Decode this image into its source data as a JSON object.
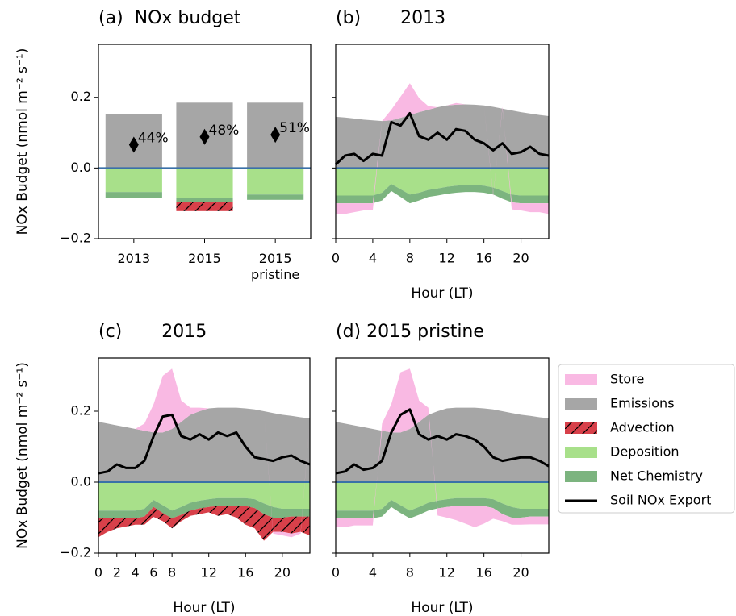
{
  "chart_data": [
    {
      "type": "bar",
      "title": "(a)  NOx budget",
      "ylabel": "NOx Budget (nmol m⁻² s⁻¹)",
      "categories": [
        "2013",
        "2015",
        "2015 pristine"
      ],
      "series": [
        {
          "kind": "stack",
          "color": "#f9b9e3",
          "values": [
            0,
            0,
            0
          ]
        },
        {
          "kind": "stack",
          "color": "#a6a6a6",
          "values": [
            0.152,
            0.185,
            0.185
          ]
        },
        {
          "kind": "stack",
          "color": "#d8404a",
          "hatch": "/",
          "values": [
            0,
            -0.025,
            0
          ]
        },
        {
          "kind": "stack",
          "color": "#a8e08a",
          "values": [
            -0.068,
            -0.085,
            -0.075
          ]
        },
        {
          "kind": "stack",
          "color": "#7cb47f",
          "values": [
            -0.017,
            -0.012,
            -0.015
          ]
        },
        {
          "kind": "marker",
          "color": "#000000",
          "values": [
            0.066,
            0.088,
            0.094
          ]
        }
      ],
      "annotations": [
        "44%",
        "48%",
        "51%"
      ],
      "hline": {
        "value": 0,
        "color": "#3a70a8"
      },
      "ylim": [
        -0.2,
        0.35
      ],
      "yticks": [
        {
          "value": -0.2,
          "label": "−0.2"
        },
        {
          "value": 0,
          "label": "0.0"
        },
        0.2
      ],
      "show_ytick_labels": true
    },
    {
      "type": "area",
      "title": "(b)       2013",
      "xlabel": "Hour (LT)",
      "x": [
        0,
        1,
        2,
        3,
        4,
        5,
        6,
        7,
        8,
        9,
        10,
        11,
        12,
        13,
        14,
        15,
        16,
        17,
        18,
        19,
        20,
        21,
        22,
        23
      ],
      "series": [
        {
          "kind": "stack",
          "color": "#f9b9e3",
          "values": [
            -0.03,
            -0.03,
            -0.025,
            -0.02,
            -0.02,
            0.0,
            0.03,
            0.06,
            0.09,
            0.04,
            0.01,
            0.0,
            0.0,
            0.005,
            0.0,
            0.0,
            0.0,
            -0.005,
            0.005,
            -0.02,
            -0.02,
            -0.025,
            -0.025,
            -0.03
          ]
        },
        {
          "kind": "stack",
          "color": "#a6a6a6",
          "values": [
            0.145,
            0.143,
            0.14,
            0.137,
            0.135,
            0.133,
            0.135,
            0.142,
            0.15,
            0.158,
            0.165,
            0.172,
            0.177,
            0.179,
            0.18,
            0.179,
            0.177,
            0.173,
            0.168,
            0.163,
            0.158,
            0.154,
            0.15,
            0.147
          ]
        },
        {
          "kind": "stack",
          "color": "#d8404a",
          "hatch": "/",
          "values": [
            0,
            0,
            0,
            0,
            0,
            0,
            0,
            0,
            0,
            0,
            0,
            0,
            0,
            0,
            0,
            0,
            0,
            0,
            0,
            0,
            0,
            0,
            0,
            0
          ]
        },
        {
          "kind": "stack",
          "color": "#a8e08a",
          "values": [
            -0.078,
            -0.078,
            -0.078,
            -0.078,
            -0.078,
            -0.07,
            -0.045,
            -0.06,
            -0.075,
            -0.07,
            -0.062,
            -0.058,
            -0.053,
            -0.05,
            -0.048,
            -0.048,
            -0.05,
            -0.055,
            -0.065,
            -0.075,
            -0.078,
            -0.078,
            -0.078,
            -0.078
          ]
        },
        {
          "kind": "stack",
          "color": "#7cb47f",
          "values": [
            -0.022,
            -0.022,
            -0.022,
            -0.022,
            -0.022,
            -0.022,
            -0.02,
            -0.022,
            -0.025,
            -0.022,
            -0.02,
            -0.02,
            -0.02,
            -0.02,
            -0.02,
            -0.02,
            -0.02,
            -0.02,
            -0.022,
            -0.022,
            -0.022,
            -0.022,
            -0.022,
            -0.022
          ]
        },
        {
          "kind": "line",
          "color": "#000000",
          "values": [
            0.01,
            0.035,
            0.04,
            0.02,
            0.04,
            0.035,
            0.13,
            0.12,
            0.155,
            0.09,
            0.08,
            0.1,
            0.08,
            0.11,
            0.105,
            0.08,
            0.07,
            0.05,
            0.07,
            0.04,
            0.045,
            0.06,
            0.04,
            0.035
          ]
        }
      ],
      "hline": {
        "value": 0,
        "color": "#3a70a8"
      },
      "xlim": [
        0,
        23
      ],
      "xticks": [
        0,
        4,
        8,
        12,
        16,
        20
      ],
      "ylim": [
        -0.2,
        0.35
      ],
      "yticks": [
        -0.2,
        0,
        0.2
      ],
      "show_ytick_labels": false
    },
    {
      "type": "area",
      "title": "(c)       2015",
      "xlabel": "Hour (LT)",
      "ylabel": "NOx Budget (nmol m⁻² s⁻¹)",
      "x": [
        0,
        1,
        2,
        3,
        4,
        5,
        6,
        7,
        8,
        9,
        10,
        11,
        12,
        13,
        14,
        15,
        16,
        17,
        18,
        19,
        20,
        21,
        22,
        23
      ],
      "series": [
        {
          "kind": "stack",
          "color": "#f9b9e3",
          "values": [
            0,
            0,
            0,
            0,
            0,
            0.02,
            0.08,
            0.16,
            0.17,
            0.06,
            0.02,
            0.01,
            0,
            0,
            0,
            0,
            0,
            0,
            0,
            -0.005,
            -0.01,
            -0.01,
            -0.005,
            0
          ]
        },
        {
          "kind": "stack",
          "color": "#a6a6a6",
          "values": [
            0.17,
            0.165,
            0.16,
            0.155,
            0.15,
            0.145,
            0.14,
            0.14,
            0.15,
            0.17,
            0.19,
            0.2,
            0.208,
            0.21,
            0.21,
            0.21,
            0.208,
            0.205,
            0.2,
            0.195,
            0.19,
            0.187,
            0.183,
            0.18
          ]
        },
        {
          "kind": "stack",
          "color": "#d8404a",
          "hatch": "/",
          "values": [
            -0.053,
            -0.038,
            -0.028,
            -0.023,
            -0.018,
            -0.023,
            -0.028,
            -0.023,
            -0.028,
            -0.018,
            -0.015,
            -0.016,
            -0.015,
            -0.028,
            -0.023,
            -0.033,
            -0.053,
            -0.057,
            -0.075,
            -0.04,
            -0.04,
            -0.048,
            -0.043,
            -0.053
          ]
        },
        {
          "kind": "stack",
          "color": "#a8e08a",
          "values": [
            -0.08,
            -0.08,
            -0.08,
            -0.08,
            -0.08,
            -0.075,
            -0.05,
            -0.065,
            -0.08,
            -0.07,
            -0.058,
            -0.052,
            -0.048,
            -0.045,
            -0.045,
            -0.045,
            -0.045,
            -0.048,
            -0.06,
            -0.07,
            -0.075,
            -0.075,
            -0.075,
            -0.075
          ]
        },
        {
          "kind": "stack",
          "color": "#7cb47f",
          "values": [
            -0.022,
            -0.022,
            -0.022,
            -0.022,
            -0.022,
            -0.022,
            -0.02,
            -0.022,
            -0.022,
            -0.022,
            -0.022,
            -0.022,
            -0.022,
            -0.022,
            -0.022,
            -0.022,
            -0.022,
            -0.025,
            -0.03,
            -0.03,
            -0.025,
            -0.022,
            -0.022,
            -0.022
          ]
        },
        {
          "kind": "line",
          "color": "#000000",
          "values": [
            0.025,
            0.03,
            0.05,
            0.04,
            0.04,
            0.06,
            0.13,
            0.185,
            0.19,
            0.13,
            0.12,
            0.135,
            0.12,
            0.14,
            0.13,
            0.14,
            0.1,
            0.07,
            0.065,
            0.06,
            0.07,
            0.075,
            0.06,
            0.05
          ]
        }
      ],
      "hline": {
        "value": 0,
        "color": "#3a70a8"
      },
      "xlim": [
        0,
        23
      ],
      "xticks": [
        0,
        2,
        4,
        6,
        8,
        12,
        16,
        20
      ],
      "ylim": [
        -0.2,
        0.35
      ],
      "yticks": [
        {
          "value": -0.2,
          "label": "−0.2"
        },
        {
          "value": 0,
          "label": "0.0"
        },
        0.2
      ],
      "show_ytick_labels": true
    },
    {
      "type": "area",
      "title": "(d) 2015 pristine",
      "xlabel": "Hour (LT)",
      "x": [
        0,
        1,
        2,
        3,
        4,
        5,
        6,
        7,
        8,
        9,
        10,
        11,
        12,
        13,
        14,
        15,
        16,
        17,
        18,
        19,
        20,
        21,
        22,
        23
      ],
      "series": [
        {
          "name": "Store",
          "kind": "stack",
          "color": "#f9b9e3",
          "values": [
            -0.025,
            -0.025,
            -0.02,
            -0.02,
            -0.02,
            0.02,
            0.08,
            0.17,
            0.17,
            0.06,
            0.02,
            -0.02,
            -0.03,
            -0.04,
            -0.05,
            -0.06,
            -0.05,
            -0.03,
            -0.02,
            -0.02,
            -0.02,
            -0.022,
            -0.022,
            -0.022
          ]
        },
        {
          "name": "Emissions",
          "kind": "stack",
          "color": "#a6a6a6",
          "values": [
            0.17,
            0.165,
            0.16,
            0.155,
            0.15,
            0.145,
            0.14,
            0.14,
            0.15,
            0.17,
            0.19,
            0.2,
            0.208,
            0.21,
            0.21,
            0.21,
            0.208,
            0.205,
            0.2,
            0.195,
            0.19,
            0.187,
            0.183,
            0.18
          ]
        },
        {
          "name": "Advection",
          "kind": "stack",
          "color": "#d8404a",
          "hatch": "/",
          "values": [
            0,
            0,
            0,
            0,
            0,
            0,
            0,
            0,
            0,
            0,
            0,
            0,
            0,
            0,
            0,
            0,
            0,
            0,
            0,
            0,
            0,
            0,
            0,
            0
          ]
        },
        {
          "name": "Deposition",
          "kind": "stack",
          "color": "#a8e08a",
          "values": [
            -0.08,
            -0.08,
            -0.08,
            -0.08,
            -0.08,
            -0.075,
            -0.05,
            -0.065,
            -0.08,
            -0.07,
            -0.058,
            -0.052,
            -0.048,
            -0.045,
            -0.045,
            -0.045,
            -0.045,
            -0.048,
            -0.06,
            -0.07,
            -0.075,
            -0.075,
            -0.075,
            -0.075
          ]
        },
        {
          "name": "Net Chemistry",
          "kind": "stack",
          "color": "#7cb47f",
          "values": [
            -0.022,
            -0.022,
            -0.022,
            -0.022,
            -0.022,
            -0.022,
            -0.02,
            -0.022,
            -0.022,
            -0.022,
            -0.022,
            -0.022,
            -0.022,
            -0.022,
            -0.022,
            -0.022,
            -0.022,
            -0.025,
            -0.03,
            -0.03,
            -0.025,
            -0.022,
            -0.022,
            -0.022
          ]
        },
        {
          "name": "Soil NOx Export",
          "kind": "line",
          "color": "#000000",
          "values": [
            0.025,
            0.03,
            0.05,
            0.035,
            0.04,
            0.06,
            0.14,
            0.19,
            0.205,
            0.135,
            0.12,
            0.13,
            0.12,
            0.135,
            0.13,
            0.12,
            0.1,
            0.07,
            0.06,
            0.065,
            0.07,
            0.07,
            0.06,
            0.045
          ]
        }
      ],
      "hline": {
        "value": 0,
        "color": "#3a70a8"
      },
      "legend": "outside right",
      "xlim": [
        0,
        23
      ],
      "xticks": [
        0,
        4,
        8,
        12,
        16,
        20
      ],
      "ylim": [
        -0.2,
        0.35
      ],
      "yticks": [
        -0.2,
        0,
        0.2
      ],
      "show_ytick_labels": false
    }
  ]
}
